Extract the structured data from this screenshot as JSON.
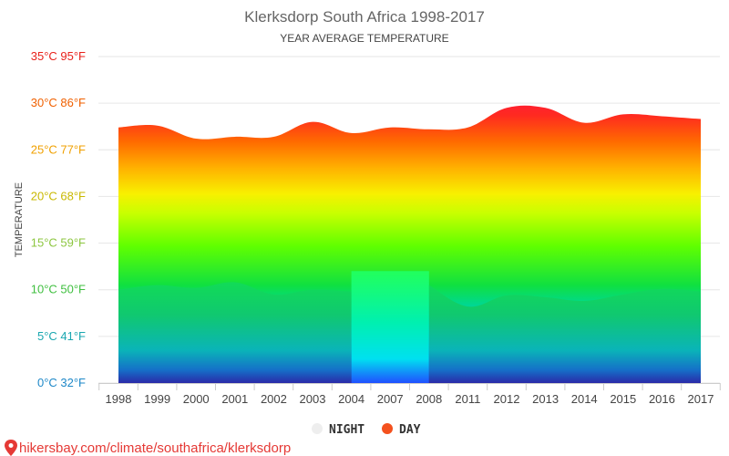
{
  "chart_data": {
    "type": "area",
    "title": "Klerksdorp South Africa 1998-2017",
    "subtitle": "YEAR AVERAGE TEMPERATURE",
    "ylabel": "TEMPERATURE",
    "categories": [
      "1998",
      "1999",
      "2000",
      "2001",
      "2002",
      "2003",
      "2004",
      "2007",
      "2008",
      "2011",
      "2012",
      "2013",
      "2014",
      "2015",
      "2016",
      "2017"
    ],
    "y_tick_labels": [
      "0°C 32°F",
      "5°C 41°F",
      "10°C 50°F",
      "15°C 59°F",
      "20°C 68°F",
      "25°C 77°F",
      "30°C 86°F",
      "35°C 95°F"
    ],
    "y_tick_colors": [
      "#1e88c8",
      "#1aa7b0",
      "#3fbf3f",
      "#8cc63f",
      "#c9b800",
      "#f0a000",
      "#f06000",
      "#e8211a"
    ],
    "ylim": [
      0,
      35
    ],
    "grid": true,
    "legend_position": "bottom",
    "series": [
      {
        "name": "NIGHT",
        "color": "#eeeeee",
        "values": [
          10.0,
          10.5,
          10.2,
          10.8,
          9.5,
          10.0,
          9.8,
          0.0,
          10.5,
          8.2,
          9.4,
          9.2,
          8.8,
          9.5,
          10.1,
          9.8
        ]
      },
      {
        "name": "DAY",
        "color": "#f4511e",
        "values": [
          27.4,
          27.6,
          26.2,
          26.4,
          26.4,
          28.0,
          26.8,
          27.4,
          27.2,
          27.4,
          29.5,
          29.5,
          27.9,
          28.8,
          28.6,
          28.3
        ]
      }
    ]
  },
  "footer": {
    "source_text": "hikersbay.com/climate/southafrica/klerksdorp"
  }
}
